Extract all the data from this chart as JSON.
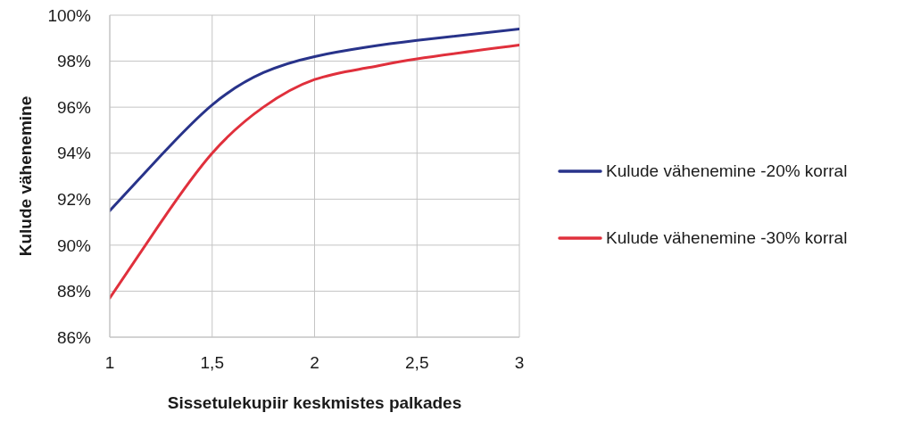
{
  "chart_data": {
    "type": "line",
    "xlabel": "Sissetulekupiir keskmistes palkades",
    "ylabel": "Kulude vähenemine",
    "x": [
      1,
      1.25,
      1.5,
      1.75,
      2,
      2.25,
      2.5,
      3
    ],
    "series": [
      {
        "name": "Kulude vähenemine -20% korral",
        "color": "#28338a",
        "values": [
          91.5,
          93.9,
          96.1,
          97.5,
          98.2,
          98.6,
          98.9,
          99.4
        ]
      },
      {
        "name": "Kulude vähenemine -30% korral",
        "color": "#e0303c",
        "values": [
          87.7,
          91.0,
          94.0,
          96.0,
          97.2,
          97.7,
          98.1,
          98.7
        ]
      }
    ],
    "xlim": [
      1,
      3
    ],
    "xticks": [
      1,
      {
        "value": 1.5,
        "label": "1,5"
      },
      2,
      {
        "value": 2.5,
        "label": "2,5"
      },
      3
    ],
    "ylim": [
      86,
      100
    ],
    "yticks": [
      {
        "value": 86,
        "label": "86%"
      },
      {
        "value": 88,
        "label": "88%"
      },
      {
        "value": 90,
        "label": "90%"
      },
      {
        "value": 92,
        "label": "92%"
      },
      {
        "value": 94,
        "label": "94%"
      },
      {
        "value": 96,
        "label": "96%"
      },
      {
        "value": 98,
        "label": "98%"
      },
      {
        "value": 100,
        "label": "100%"
      }
    ],
    "grid": true,
    "legend": "right"
  }
}
